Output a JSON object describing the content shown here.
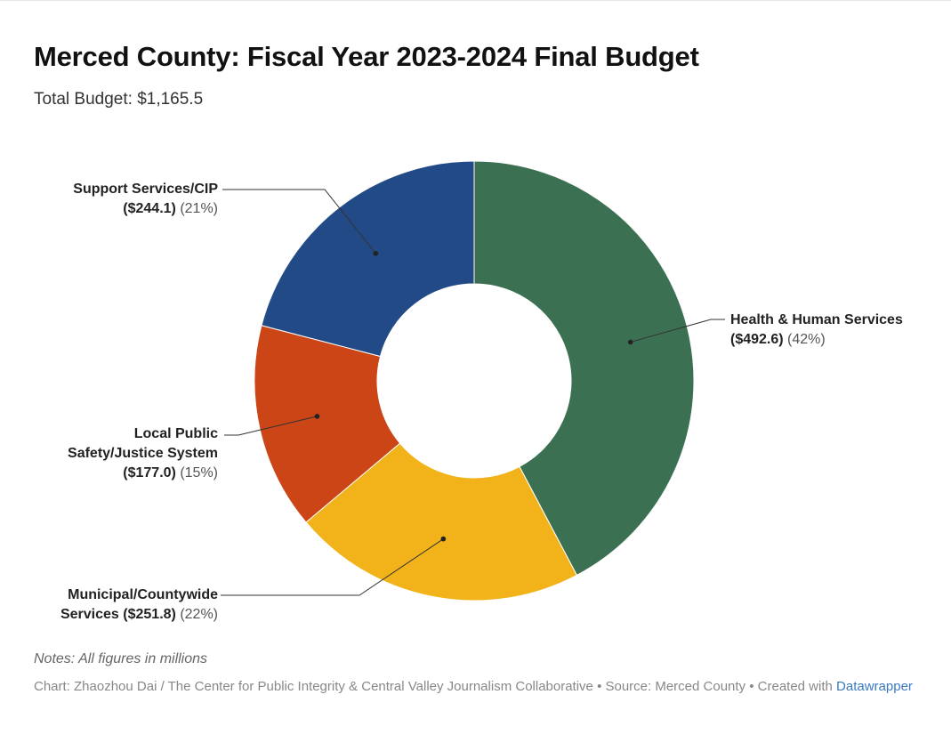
{
  "title": "Merced County: Fiscal Year 2023-2024 Final Budget",
  "subtitle": "Total Budget: $1,165.5",
  "notes": "Notes: All figures in millions",
  "credit": {
    "prefix": "Chart: Zhaozhou Dai / The Center for Public Integrity & Central Valley Journalism Collaborative • Source: Merced County • Created with",
    "link": "Datawrapper"
  },
  "chart_data": {
    "type": "pie",
    "donut": true,
    "title": "Merced County: Fiscal Year 2023-2024 Final Budget",
    "subtitle": "Total Budget: $1,165.5",
    "slices": [
      {
        "name": "Health & Human Services",
        "value": 492.6,
        "value_label": "($492.6)",
        "pct_label": "(42%)",
        "color": "#3b7152"
      },
      {
        "name": "Municipal/Countywide Services",
        "value": 251.8,
        "value_label": "($251.8)",
        "pct_label": "(22%)",
        "color": "#f2b21a"
      },
      {
        "name": "Local Public Safety/Justice System",
        "value": 177.0,
        "value_label": "($177.0)",
        "pct_label": "(15%)",
        "color": "#cc4517"
      },
      {
        "name": "Support Services/CIP",
        "value": 244.1,
        "value_label": "($244.1)",
        "pct_label": "(21%)",
        "color": "#214a87"
      }
    ]
  },
  "labels": {
    "health": {
      "line1": "Health & Human Services",
      "value": "($492.6)",
      "pct": "(42%)"
    },
    "municipal": {
      "line1": "Municipal/Countywide",
      "line2_prefix": "Services",
      "value": "($251.8)",
      "pct": "(22%)"
    },
    "safety": {
      "line1": "Local Public",
      "line2": "Safety/Justice System",
      "value": "($177.0)",
      "pct": "(15%)"
    },
    "support": {
      "line1": "Support Services/CIP",
      "value": "($244.1)",
      "pct": "(21%)"
    }
  }
}
